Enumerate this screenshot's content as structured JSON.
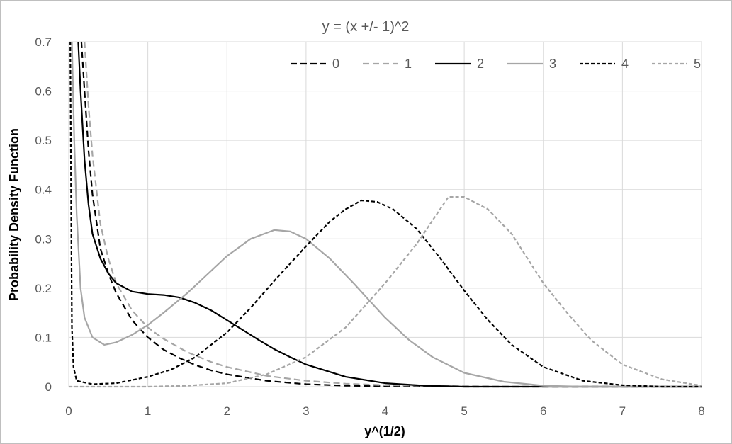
{
  "chart_data": {
    "type": "line",
    "title": "y = (x +/- 1)^2",
    "xlabel": "y^(1/2)",
    "ylabel": "Probability Density Function",
    "xlim": [
      0,
      8
    ],
    "ylim": [
      0,
      0.7
    ],
    "x_ticks": [
      "0",
      "1",
      "2",
      "3",
      "4",
      "5",
      "6",
      "7",
      "8"
    ],
    "y_ticks": [
      "0",
      "0.1",
      "0.2",
      "0.3",
      "0.4",
      "0.5",
      "0.6",
      "0.7"
    ],
    "grid": true,
    "legend_position": "top-right",
    "series": [
      {
        "name": "0",
        "color": "#000000",
        "style": "dashed",
        "points": [
          [
            0.16,
            0.7
          ],
          [
            0.2,
            0.6
          ],
          [
            0.25,
            0.48
          ],
          [
            0.3,
            0.39
          ],
          [
            0.4,
            0.28
          ],
          [
            0.5,
            0.23
          ],
          [
            0.6,
            0.19
          ],
          [
            0.8,
            0.135
          ],
          [
            1.0,
            0.1
          ],
          [
            1.2,
            0.075
          ],
          [
            1.4,
            0.058
          ],
          [
            1.6,
            0.044
          ],
          [
            1.8,
            0.033
          ],
          [
            2.0,
            0.025
          ],
          [
            2.5,
            0.012
          ],
          [
            3.0,
            0.005
          ],
          [
            3.5,
            0.002
          ],
          [
            4.0,
            0.001
          ],
          [
            5.0,
            0
          ],
          [
            8.0,
            0
          ]
        ]
      },
      {
        "name": "1",
        "color": "#a6a6a6",
        "style": "dashed",
        "points": [
          [
            0.2,
            0.7
          ],
          [
            0.25,
            0.57
          ],
          [
            0.3,
            0.47
          ],
          [
            0.4,
            0.33
          ],
          [
            0.5,
            0.26
          ],
          [
            0.6,
            0.21
          ],
          [
            0.8,
            0.155
          ],
          [
            1.0,
            0.12
          ],
          [
            1.2,
            0.097
          ],
          [
            1.5,
            0.07
          ],
          [
            1.8,
            0.05
          ],
          [
            2.0,
            0.04
          ],
          [
            2.5,
            0.022
          ],
          [
            3.0,
            0.012
          ],
          [
            3.5,
            0.006
          ],
          [
            4.0,
            0.003
          ],
          [
            5.0,
            0.001
          ],
          [
            6.0,
            0
          ],
          [
            8.0,
            0
          ]
        ]
      },
      {
        "name": "2",
        "color": "#000000",
        "style": "solid",
        "points": [
          [
            0.12,
            0.7
          ],
          [
            0.15,
            0.6
          ],
          [
            0.2,
            0.46
          ],
          [
            0.25,
            0.37
          ],
          [
            0.3,
            0.31
          ],
          [
            0.4,
            0.26
          ],
          [
            0.5,
            0.23
          ],
          [
            0.6,
            0.21
          ],
          [
            0.8,
            0.193
          ],
          [
            1.0,
            0.188
          ],
          [
            1.2,
            0.186
          ],
          [
            1.4,
            0.181
          ],
          [
            1.6,
            0.17
          ],
          [
            1.8,
            0.155
          ],
          [
            2.0,
            0.135
          ],
          [
            2.2,
            0.115
          ],
          [
            2.4,
            0.095
          ],
          [
            2.6,
            0.076
          ],
          [
            2.8,
            0.06
          ],
          [
            3.0,
            0.045
          ],
          [
            3.5,
            0.02
          ],
          [
            4.0,
            0.007
          ],
          [
            4.5,
            0.002
          ],
          [
            5.0,
            0
          ],
          [
            8.0,
            0
          ]
        ]
      },
      {
        "name": "3",
        "color": "#a6a6a6",
        "style": "solid",
        "points": [
          [
            0.04,
            0.7
          ],
          [
            0.07,
            0.5
          ],
          [
            0.1,
            0.35
          ],
          [
            0.15,
            0.2
          ],
          [
            0.2,
            0.14
          ],
          [
            0.3,
            0.1
          ],
          [
            0.45,
            0.085
          ],
          [
            0.6,
            0.09
          ],
          [
            0.8,
            0.105
          ],
          [
            1.0,
            0.125
          ],
          [
            1.2,
            0.15
          ],
          [
            1.5,
            0.19
          ],
          [
            1.8,
            0.235
          ],
          [
            2.0,
            0.265
          ],
          [
            2.3,
            0.3
          ],
          [
            2.6,
            0.318
          ],
          [
            2.8,
            0.315
          ],
          [
            3.0,
            0.3
          ],
          [
            3.3,
            0.26
          ],
          [
            3.6,
            0.21
          ],
          [
            4.0,
            0.14
          ],
          [
            4.3,
            0.095
          ],
          [
            4.6,
            0.06
          ],
          [
            5.0,
            0.028
          ],
          [
            5.5,
            0.01
          ],
          [
            6.0,
            0.002
          ],
          [
            6.5,
            0
          ],
          [
            8.0,
            0
          ]
        ]
      },
      {
        "name": "4",
        "color": "#000000",
        "style": "dotted",
        "points": [
          [
            0.02,
            0.7
          ],
          [
            0.03,
            0.4
          ],
          [
            0.04,
            0.12
          ],
          [
            0.06,
            0.04
          ],
          [
            0.1,
            0.012
          ],
          [
            0.3,
            0.005
          ],
          [
            0.6,
            0.007
          ],
          [
            1.0,
            0.02
          ],
          [
            1.3,
            0.035
          ],
          [
            1.6,
            0.06
          ],
          [
            2.0,
            0.11
          ],
          [
            2.3,
            0.16
          ],
          [
            2.6,
            0.215
          ],
          [
            3.0,
            0.285
          ],
          [
            3.3,
            0.335
          ],
          [
            3.5,
            0.36
          ],
          [
            3.7,
            0.378
          ],
          [
            3.9,
            0.375
          ],
          [
            4.1,
            0.36
          ],
          [
            4.4,
            0.32
          ],
          [
            4.7,
            0.26
          ],
          [
            5.0,
            0.195
          ],
          [
            5.3,
            0.135
          ],
          [
            5.6,
            0.085
          ],
          [
            6.0,
            0.04
          ],
          [
            6.5,
            0.012
          ],
          [
            7.0,
            0.003
          ],
          [
            7.5,
            0
          ],
          [
            8.0,
            0
          ]
        ]
      },
      {
        "name": "5",
        "color": "#a6a6a6",
        "style": "dotted",
        "points": [
          [
            0,
            0
          ],
          [
            1.0,
            0
          ],
          [
            1.5,
            0.002
          ],
          [
            2.0,
            0.007
          ],
          [
            2.5,
            0.025
          ],
          [
            3.0,
            0.06
          ],
          [
            3.5,
            0.12
          ],
          [
            4.0,
            0.21
          ],
          [
            4.4,
            0.29
          ],
          [
            4.8,
            0.385
          ],
          [
            5.0,
            0.385
          ],
          [
            5.3,
            0.36
          ],
          [
            5.6,
            0.31
          ],
          [
            6.0,
            0.21
          ],
          [
            6.3,
            0.15
          ],
          [
            6.6,
            0.095
          ],
          [
            7.0,
            0.045
          ],
          [
            7.5,
            0.015
          ],
          [
            8.0,
            0.002
          ]
        ]
      }
    ]
  }
}
